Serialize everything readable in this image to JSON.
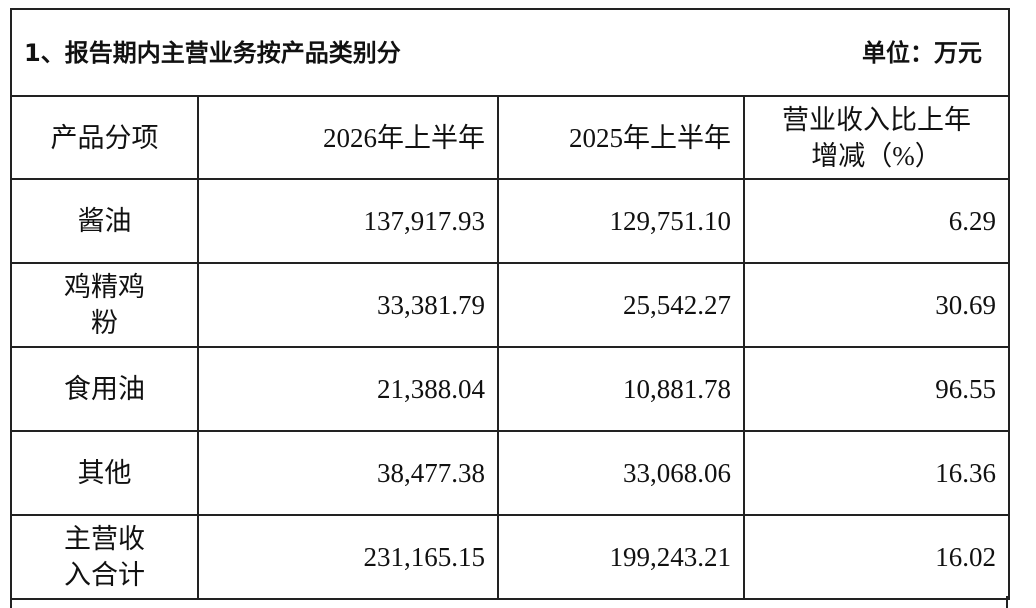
{
  "title": {
    "text": "1、报告期内主营业务按产品类别分",
    "unit": "单位：万元"
  },
  "table": {
    "header": [
      "产品分项",
      "2026年上半年",
      "2025年上半年",
      "营业收入比上年增减（%）"
    ],
    "rows": [
      [
        "酱油",
        "137,917.93",
        "129,751.10",
        "6.29"
      ],
      [
        "鸡精鸡粉",
        "33,381.79",
        "25,542.27",
        "30.69"
      ],
      [
        "食用油",
        "21,388.04",
        "10,881.78",
        "96.55"
      ],
      [
        "其他",
        "38,477.38",
        "33,068.06",
        "16.36"
      ],
      [
        "主营收入合计",
        "231,165.15",
        "199,243.21",
        "16.02"
      ]
    ]
  }
}
